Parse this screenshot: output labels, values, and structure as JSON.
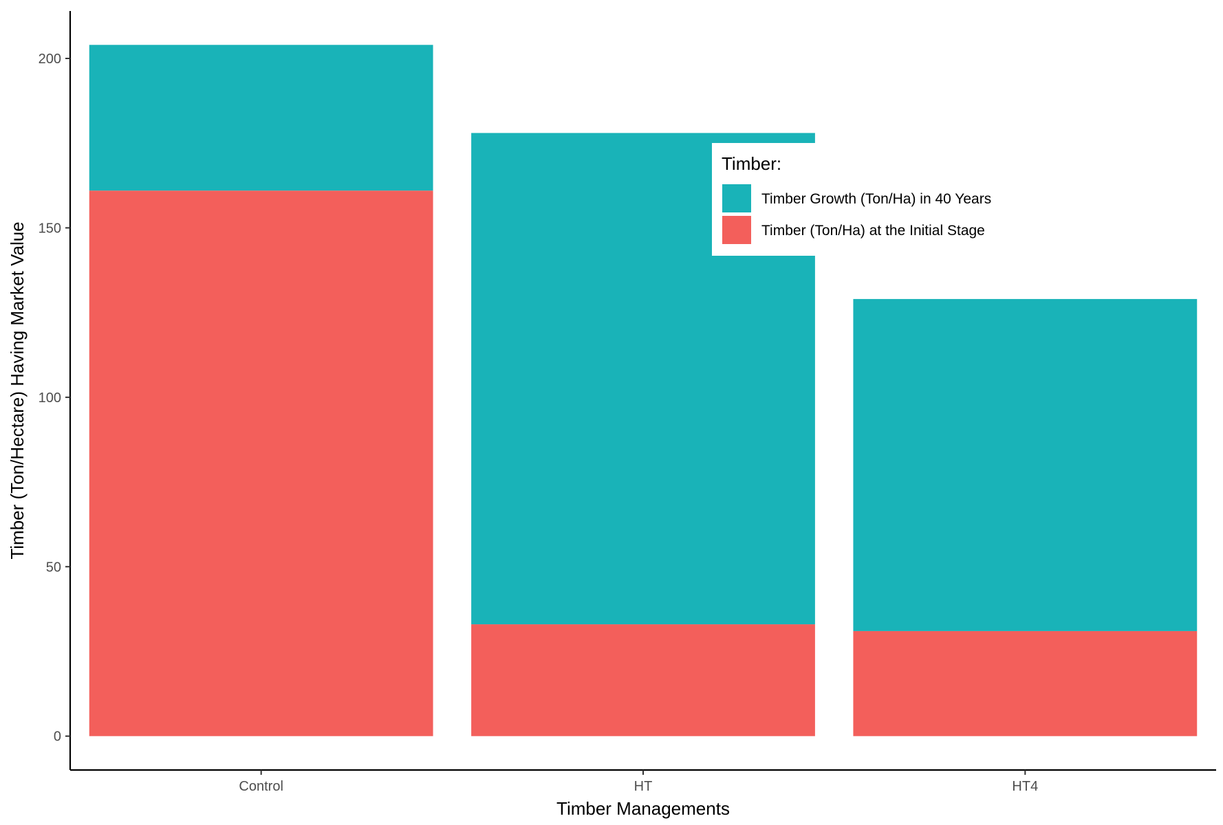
{
  "chart_data": {
    "type": "bar",
    "stacked": true,
    "categories": [
      "Control",
      "HT",
      "HT4"
    ],
    "series": [
      {
        "name": "Timber (Ton/Ha) at the Initial Stage",
        "values": [
          161,
          33,
          31
        ],
        "color": "#F35F5B"
      },
      {
        "name": "Timber Growth (Ton/Ha) in 40 Years",
        "values": [
          43,
          145,
          98
        ],
        "color": "#19B3B8"
      }
    ],
    "title": "",
    "xlabel": "Timber Managements",
    "ylabel": "Timber (Ton/Hectare) Having Market Value",
    "ylim": [
      -10,
      214
    ],
    "yticks": [
      0,
      50,
      100,
      150,
      200
    ],
    "grid": false,
    "legend": {
      "title": "Timber:",
      "placement": "inside-top-right",
      "entries": [
        {
          "label": "Timber Growth (Ton/Ha) in 40 Years",
          "color": "#19B3B8"
        },
        {
          "label": "Timber (Ton/Ha) at the Initial Stage",
          "color": "#F35F5B"
        }
      ]
    }
  }
}
